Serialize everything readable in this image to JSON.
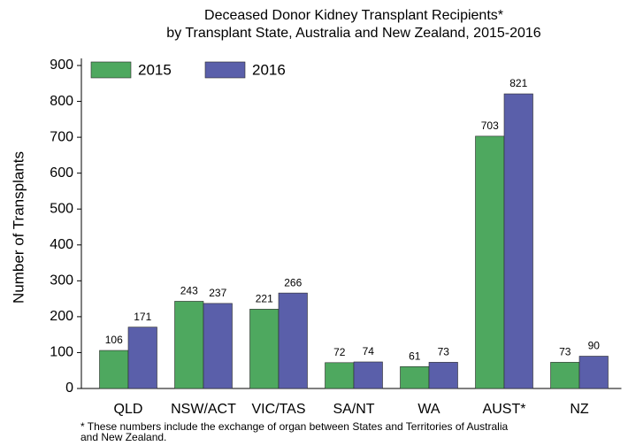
{
  "chart_data": {
    "type": "bar",
    "title": [
      "Deceased Donor Kidney Transplant Recipients*",
      "by Transplant State, Australia and New Zealand, 2015-2016"
    ],
    "y_label": "Number of Transplants",
    "categories": [
      "QLD",
      "NSW/ACT",
      "VIC/TAS",
      "SA/NT",
      "WA",
      "AUST*",
      "NZ"
    ],
    "series": [
      {
        "name": "2015",
        "color": "#4ea85f",
        "values": [
          106,
          243,
          221,
          72,
          61,
          703,
          73
        ]
      },
      {
        "name": "2016",
        "color": "#5a5faa",
        "values": [
          171,
          237,
          266,
          74,
          73,
          821,
          90
        ]
      }
    ],
    "ylim": [
      0,
      900
    ],
    "yticks": [
      0,
      100,
      200,
      300,
      400,
      500,
      600,
      700,
      800,
      900
    ],
    "legend": "top-left",
    "note": [
      "* These numbers include the exchange of organ between States and Territories of Australia",
      "and New Zealand."
    ]
  }
}
